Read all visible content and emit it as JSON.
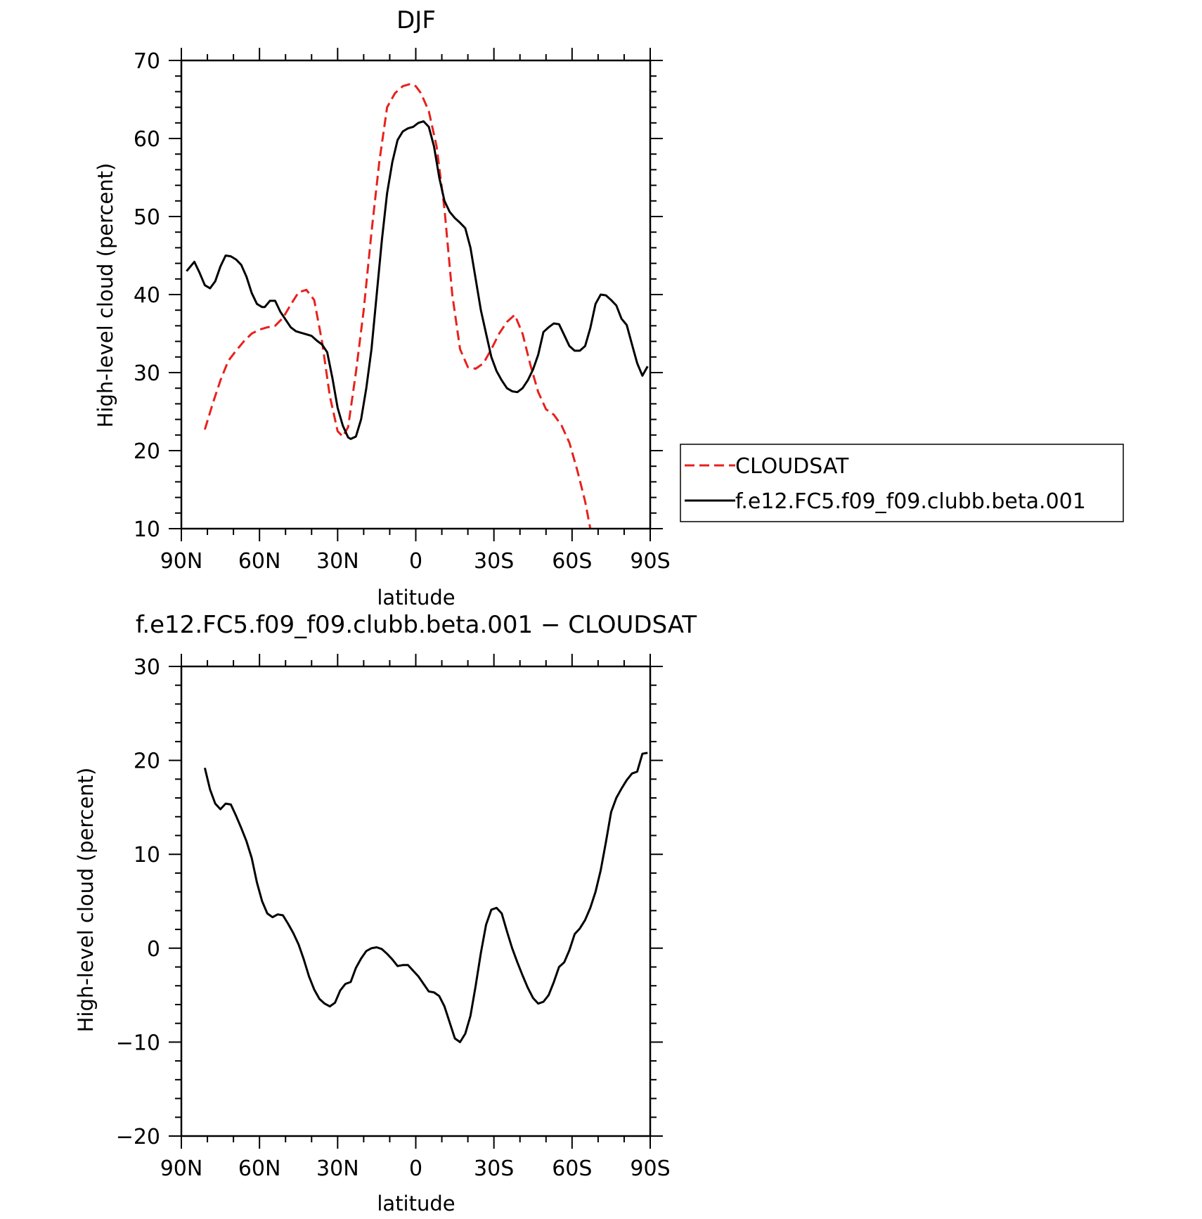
{
  "chart_data": [
    {
      "type": "line",
      "title": "DJF",
      "xlabel": "latitude",
      "ylabel": "High-level cloud (percent)",
      "xlim": [
        90,
        -90
      ],
      "ylim": [
        10,
        70
      ],
      "x_ticks": [
        90,
        60,
        30,
        0,
        -30,
        -60,
        -90
      ],
      "x_tick_labels": [
        "90N",
        "60N",
        "30N",
        "0",
        "30S",
        "60S",
        "90S"
      ],
      "y_ticks": [
        10,
        20,
        30,
        40,
        50,
        60,
        70
      ],
      "y_tick_labels": [
        "10",
        "20",
        "30",
        "40",
        "50",
        "60",
        "70"
      ],
      "legend": "outside-right",
      "grid": false,
      "series": [
        {
          "name": "CLOUDSAT",
          "color": "#e8211c",
          "dash": true,
          "points": [
            [
              81,
              22.7
            ],
            [
              78,
              26
            ],
            [
              75,
              29
            ],
            [
              72,
              31.5
            ],
            [
              69,
              32.8
            ],
            [
              66,
              34
            ],
            [
              63,
              35
            ],
            [
              60,
              35.5
            ],
            [
              57,
              35.8
            ],
            [
              54,
              36
            ],
            [
              51,
              37
            ],
            [
              48,
              38.7
            ],
            [
              45,
              40.3
            ],
            [
              42,
              40.6
            ],
            [
              39,
              39.3
            ],
            [
              36,
              34
            ],
            [
              33,
              27
            ],
            [
              30,
              22.5
            ],
            [
              28,
              21.8
            ],
            [
              26,
              23
            ],
            [
              23,
              30
            ],
            [
              20,
              38
            ],
            [
              17,
              48
            ],
            [
              14,
              57
            ],
            [
              11,
              64
            ],
            [
              8,
              65.8
            ],
            [
              5,
              66.7
            ],
            [
              2,
              67
            ],
            [
              0,
              66.7
            ],
            [
              -2,
              65.8
            ],
            [
              -5,
              63.5
            ],
            [
              -8,
              59
            ],
            [
              -11,
              51
            ],
            [
              -14,
              40
            ],
            [
              -17,
              33
            ],
            [
              -20,
              30.7
            ],
            [
              -23,
              30.5
            ],
            [
              -26,
              31.2
            ],
            [
              -29,
              33
            ],
            [
              -32,
              35
            ],
            [
              -35,
              36.5
            ],
            [
              -38,
              37.4
            ],
            [
              -41,
              35
            ],
            [
              -44,
              31
            ],
            [
              -47,
              27.5
            ],
            [
              -50,
              25.3
            ],
            [
              -53,
              24.6
            ],
            [
              -56,
              23.2
            ],
            [
              -59,
              21
            ],
            [
              -62,
              17.5
            ],
            [
              -65,
              13.5
            ],
            [
              -67,
              10
            ]
          ]
        },
        {
          "name": "f.e12.FC5.f09_f09.clubb.beta.001",
          "color": "#000000",
          "dash": false,
          "points": [
            [
              88,
              43
            ],
            [
              85,
              44.2
            ],
            [
              83,
              42.8
            ],
            [
              81,
              41.2
            ],
            [
              79,
              40.8
            ],
            [
              77,
              41.7
            ],
            [
              75,
              43.6
            ],
            [
              73,
              45
            ],
            [
              71,
              44.9
            ],
            [
              69,
              44.5
            ],
            [
              67,
              43.8
            ],
            [
              65,
              42.3
            ],
            [
              63,
              40.2
            ],
            [
              61,
              38.8
            ],
            [
              59,
              38.4
            ],
            [
              58,
              38.4
            ],
            [
              56,
              39.2
            ],
            [
              54,
              39.2
            ],
            [
              52,
              37.8
            ],
            [
              50,
              36.8
            ],
            [
              48,
              35.8
            ],
            [
              46,
              35.3
            ],
            [
              44,
              35.1
            ],
            [
              42,
              34.9
            ],
            [
              40,
              34.7
            ],
            [
              38,
              34.1
            ],
            [
              36,
              33.6
            ],
            [
              34,
              32.6
            ],
            [
              32,
              29.3
            ],
            [
              30,
              25.5
            ],
            [
              28,
              23.2
            ],
            [
              26,
              21.7
            ],
            [
              25,
              21.5
            ],
            [
              23,
              21.8
            ],
            [
              21,
              24
            ],
            [
              19,
              28
            ],
            [
              17,
              33
            ],
            [
              15,
              40
            ],
            [
              13,
              47
            ],
            [
              11,
              53
            ],
            [
              9,
              57
            ],
            [
              7,
              59.8
            ],
            [
              5,
              60.9
            ],
            [
              3,
              61.3
            ],
            [
              1,
              61.5
            ],
            [
              -1,
              62
            ],
            [
              -3,
              62.2
            ],
            [
              -5,
              61.5
            ],
            [
              -7,
              59
            ],
            [
              -9,
              55
            ],
            [
              -11,
              52
            ],
            [
              -13,
              50.6
            ],
            [
              -15,
              49.8
            ],
            [
              -17,
              49.2
            ],
            [
              -19,
              48.5
            ],
            [
              -21,
              46
            ],
            [
              -23,
              42
            ],
            [
              -25,
              38
            ],
            [
              -27,
              35
            ],
            [
              -29,
              32
            ],
            [
              -31,
              30.2
            ],
            [
              -33,
              29
            ],
            [
              -35,
              28
            ],
            [
              -37,
              27.6
            ],
            [
              -39,
              27.5
            ],
            [
              -41,
              28
            ],
            [
              -43,
              29
            ],
            [
              -45,
              30.4
            ],
            [
              -47,
              32.3
            ],
            [
              -49,
              35.2
            ],
            [
              -51,
              35.8
            ],
            [
              -53,
              36.3
            ],
            [
              -55,
              36.2
            ],
            [
              -57,
              34.8
            ],
            [
              -59,
              33.4
            ],
            [
              -61,
              32.8
            ],
            [
              -63,
              32.8
            ],
            [
              -65,
              33.4
            ],
            [
              -67,
              35.7
            ],
            [
              -69,
              38.8
            ],
            [
              -71,
              40
            ],
            [
              -73,
              39.9
            ],
            [
              -75,
              39.3
            ],
            [
              -77,
              38.6
            ],
            [
              -79,
              36.9
            ],
            [
              -81,
              36.1
            ],
            [
              -83,
              33.6
            ],
            [
              -85,
              31.2
            ],
            [
              -87,
              29.6
            ],
            [
              -89,
              30.8
            ],
            [
              -91,
              34.2
            ],
            [
              -93,
              32.9
            ]
          ]
        }
      ]
    },
    {
      "type": "line",
      "title": "f.e12.FC5.f09_f09.clubb.beta.001 − CLOUDSAT",
      "xlabel": "latitude",
      "ylabel": "High-level cloud (percent)",
      "xlim": [
        90,
        -90
      ],
      "ylim": [
        -20,
        30
      ],
      "x_ticks": [
        90,
        60,
        30,
        0,
        -30,
        -60,
        -90
      ],
      "x_tick_labels": [
        "90N",
        "60N",
        "30N",
        "0",
        "30S",
        "60S",
        "90S"
      ],
      "y_ticks": [
        -20,
        -10,
        0,
        10,
        20,
        30
      ],
      "y_tick_labels": [
        "−20",
        "−10",
        "0",
        "10",
        "20",
        "30"
      ],
      "grid": false,
      "series": [
        {
          "color": "#000000",
          "dash": false,
          "points": [
            [
              81,
              19.2
            ],
            [
              79,
              16.9
            ],
            [
              77,
              15.4
            ],
            [
              75,
              14.8
            ],
            [
              73,
              15.4
            ],
            [
              71,
              15.3
            ],
            [
              69,
              14.1
            ],
            [
              67,
              12.8
            ],
            [
              65,
              11.4
            ],
            [
              63,
              9.6
            ],
            [
              61,
              7
            ],
            [
              59,
              5
            ],
            [
              57,
              3.7
            ],
            [
              55,
              3.3
            ],
            [
              53,
              3.6
            ],
            [
              51,
              3.5
            ],
            [
              49,
              2.6
            ],
            [
              47,
              1.6
            ],
            [
              45,
              0.4
            ],
            [
              43,
              -1.2
            ],
            [
              41,
              -3
            ],
            [
              39,
              -4.4
            ],
            [
              37,
              -5.4
            ],
            [
              35,
              -5.9
            ],
            [
              33,
              -6.2
            ],
            [
              31,
              -5.8
            ],
            [
              29,
              -4.5
            ],
            [
              27,
              -3.8
            ],
            [
              25,
              -3.6
            ],
            [
              23,
              -2.1
            ],
            [
              21,
              -1.1
            ],
            [
              19,
              -0.3
            ],
            [
              17,
              0
            ],
            [
              15,
              0.1
            ],
            [
              13,
              -0.1
            ],
            [
              11,
              -0.6
            ],
            [
              9,
              -1.2
            ],
            [
              7,
              -1.9
            ],
            [
              5,
              -1.8
            ],
            [
              3,
              -1.8
            ],
            [
              1,
              -2.4
            ],
            [
              -1,
              -3
            ],
            [
              -3,
              -3.8
            ],
            [
              -5,
              -4.6
            ],
            [
              -7,
              -4.7
            ],
            [
              -9,
              -5.1
            ],
            [
              -11,
              -6.2
            ],
            [
              -13,
              -7.9
            ],
            [
              -15,
              -9.6
            ],
            [
              -17,
              -10
            ],
            [
              -19,
              -9.1
            ],
            [
              -21,
              -7.2
            ],
            [
              -23,
              -4
            ],
            [
              -25,
              -0.5
            ],
            [
              -27,
              2.5
            ],
            [
              -29,
              4.1
            ],
            [
              -31,
              4.3
            ],
            [
              -33,
              3.7
            ],
            [
              -35,
              1.8
            ],
            [
              -37,
              0
            ],
            [
              -39,
              -1.5
            ],
            [
              -41,
              -2.9
            ],
            [
              -43,
              -4.2
            ],
            [
              -45,
              -5.3
            ],
            [
              -47,
              -5.9
            ],
            [
              -49,
              -5.7
            ],
            [
              -51,
              -5
            ],
            [
              -53,
              -3.6
            ],
            [
              -55,
              -2
            ],
            [
              -57,
              -1.5
            ],
            [
              -59,
              -0.2
            ],
            [
              -61,
              1.5
            ],
            [
              -63,
              2.1
            ],
            [
              -65,
              3
            ],
            [
              -67,
              4.3
            ],
            [
              -69,
              6
            ],
            [
              -71,
              8.3
            ],
            [
              -73,
              11.3
            ],
            [
              -75,
              14.5
            ],
            [
              -77,
              16
            ],
            [
              -79,
              17
            ],
            [
              -81,
              17.9
            ],
            [
              -83,
              18.6
            ],
            [
              -85,
              18.8
            ],
            [
              -87,
              20.7
            ],
            [
              -89,
              20.8
            ],
            [
              -91,
              21.1
            ]
          ]
        }
      ]
    }
  ]
}
